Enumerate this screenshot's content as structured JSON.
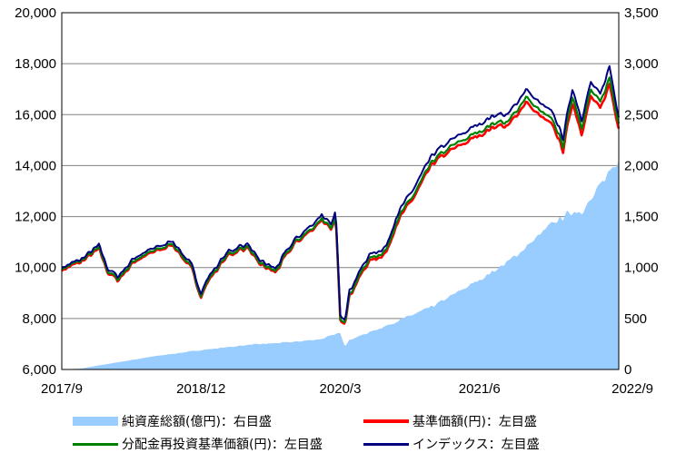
{
  "chart_data": {
    "type": "area+line",
    "left_axis": {
      "ylim": [
        6000,
        20000
      ],
      "ticks": [
        "6,000",
        "8,000",
        "10,000",
        "12,000",
        "14,000",
        "16,000",
        "18,000",
        "20,000"
      ]
    },
    "right_axis": {
      "ylim": [
        0,
        3500
      ],
      "ticks": [
        "0",
        "500",
        "1,000",
        "1,500",
        "2,000",
        "2,500",
        "3,000",
        "3,500"
      ]
    },
    "x_ticks": [
      "2017/9",
      "2018/12",
      "2020/3",
      "2021/6",
      "2022/9"
    ],
    "grid": true,
    "x_range_months": [
      0,
      60
    ],
    "series": [
      {
        "name": "純資産総額(億円)：右目盛",
        "kind": "area",
        "axis": "right",
        "color": "#99ccff",
        "points": [
          [
            0,
            0
          ],
          [
            2,
            8
          ],
          [
            5,
            55
          ],
          [
            10,
            130
          ],
          [
            15,
            190
          ],
          [
            20,
            240
          ],
          [
            25,
            270
          ],
          [
            28,
            300
          ],
          [
            30,
            360
          ],
          [
            30.5,
            230
          ],
          [
            31,
            290
          ],
          [
            35,
            430
          ],
          [
            40,
            620
          ],
          [
            45,
            880
          ],
          [
            48,
            1050
          ],
          [
            50,
            1200
          ],
          [
            53,
            1440
          ],
          [
            55,
            1550
          ],
          [
            56,
            1560
          ],
          [
            57,
            1650
          ],
          [
            59,
            1950
          ],
          [
            60,
            2070
          ]
        ]
      },
      {
        "name": "基準価額(円)：左目盛",
        "kind": "line",
        "axis": "left",
        "color": "#ff0000",
        "points": [
          [
            0,
            9900
          ],
          [
            2,
            10200
          ],
          [
            4,
            10700
          ],
          [
            5,
            9800
          ],
          [
            6,
            9500
          ],
          [
            8,
            10300
          ],
          [
            10,
            10600
          ],
          [
            12,
            10900
          ],
          [
            14,
            9900
          ],
          [
            15,
            8900
          ],
          [
            16,
            9600
          ],
          [
            18,
            10500
          ],
          [
            20,
            10800
          ],
          [
            21,
            10200
          ],
          [
            23,
            9800
          ],
          [
            25,
            10900
          ],
          [
            27,
            11500
          ],
          [
            28,
            11900
          ],
          [
            29,
            11400
          ],
          [
            29.5,
            12000
          ],
          [
            30,
            8000
          ],
          [
            30.5,
            7900
          ],
          [
            31,
            8900
          ],
          [
            33,
            10200
          ],
          [
            35,
            10600
          ],
          [
            36,
            11700
          ],
          [
            38,
            12800
          ],
          [
            40,
            14100
          ],
          [
            42,
            14600
          ],
          [
            45,
            15200
          ],
          [
            47,
            15600
          ],
          [
            48,
            15500
          ],
          [
            50,
            16500
          ],
          [
            51,
            16100
          ],
          [
            53,
            15500
          ],
          [
            54,
            14600
          ],
          [
            55,
            16500
          ],
          [
            56,
            15300
          ],
          [
            57,
            16700
          ],
          [
            58,
            16200
          ],
          [
            59,
            17200
          ],
          [
            60,
            15500
          ]
        ]
      },
      {
        "name": "分配金再投資基準価額(円)：左目盛",
        "kind": "line",
        "axis": "left",
        "color": "#008000",
        "points": [
          [
            0,
            9950
          ],
          [
            2,
            10250
          ],
          [
            4,
            10750
          ],
          [
            5,
            9850
          ],
          [
            6,
            9550
          ],
          [
            8,
            10350
          ],
          [
            10,
            10650
          ],
          [
            12,
            10950
          ],
          [
            14,
            9950
          ],
          [
            15,
            8950
          ],
          [
            16,
            9650
          ],
          [
            18,
            10550
          ],
          [
            20,
            10850
          ],
          [
            21,
            10250
          ],
          [
            23,
            9850
          ],
          [
            25,
            10950
          ],
          [
            27,
            11550
          ],
          [
            28,
            11950
          ],
          [
            29,
            11450
          ],
          [
            29.5,
            12050
          ],
          [
            30,
            8050
          ],
          [
            30.5,
            7950
          ],
          [
            31,
            8950
          ],
          [
            33,
            10300
          ],
          [
            35,
            10700
          ],
          [
            36,
            11800
          ],
          [
            38,
            12900
          ],
          [
            40,
            14200
          ],
          [
            42,
            14750
          ],
          [
            45,
            15350
          ],
          [
            47,
            15750
          ],
          [
            48,
            15650
          ],
          [
            50,
            16700
          ],
          [
            51,
            16300
          ],
          [
            53,
            15700
          ],
          [
            54,
            14800
          ],
          [
            55,
            16750
          ],
          [
            56,
            15550
          ],
          [
            57,
            16950
          ],
          [
            58,
            16450
          ],
          [
            59,
            17450
          ],
          [
            60,
            15700
          ]
        ]
      },
      {
        "name": "インデックス：左目盛",
        "kind": "line",
        "axis": "left",
        "color": "#000080",
        "points": [
          [
            0,
            10000
          ],
          [
            2,
            10300
          ],
          [
            4,
            10850
          ],
          [
            5,
            9950
          ],
          [
            6,
            9650
          ],
          [
            8,
            10450
          ],
          [
            10,
            10750
          ],
          [
            12,
            11050
          ],
          [
            14,
            10050
          ],
          [
            15,
            9050
          ],
          [
            16,
            9750
          ],
          [
            18,
            10650
          ],
          [
            20,
            10950
          ],
          [
            21,
            10350
          ],
          [
            23,
            9950
          ],
          [
            25,
            11050
          ],
          [
            27,
            11700
          ],
          [
            28,
            12100
          ],
          [
            29,
            11600
          ],
          [
            29.5,
            12250
          ],
          [
            30,
            8200
          ],
          [
            30.5,
            8050
          ],
          [
            31,
            9100
          ],
          [
            33,
            10450
          ],
          [
            35,
            10850
          ],
          [
            36,
            12000
          ],
          [
            38,
            13150
          ],
          [
            40,
            14450
          ],
          [
            42,
            15000
          ],
          [
            45,
            15650
          ],
          [
            47,
            16050
          ],
          [
            48,
            15950
          ],
          [
            50,
            17000
          ],
          [
            51,
            16600
          ],
          [
            53,
            16000
          ],
          [
            54,
            15100
          ],
          [
            55,
            17050
          ],
          [
            56,
            15850
          ],
          [
            57,
            17250
          ],
          [
            58,
            16750
          ],
          [
            59,
            17900
          ],
          [
            60,
            15950
          ]
        ]
      }
    ]
  }
}
